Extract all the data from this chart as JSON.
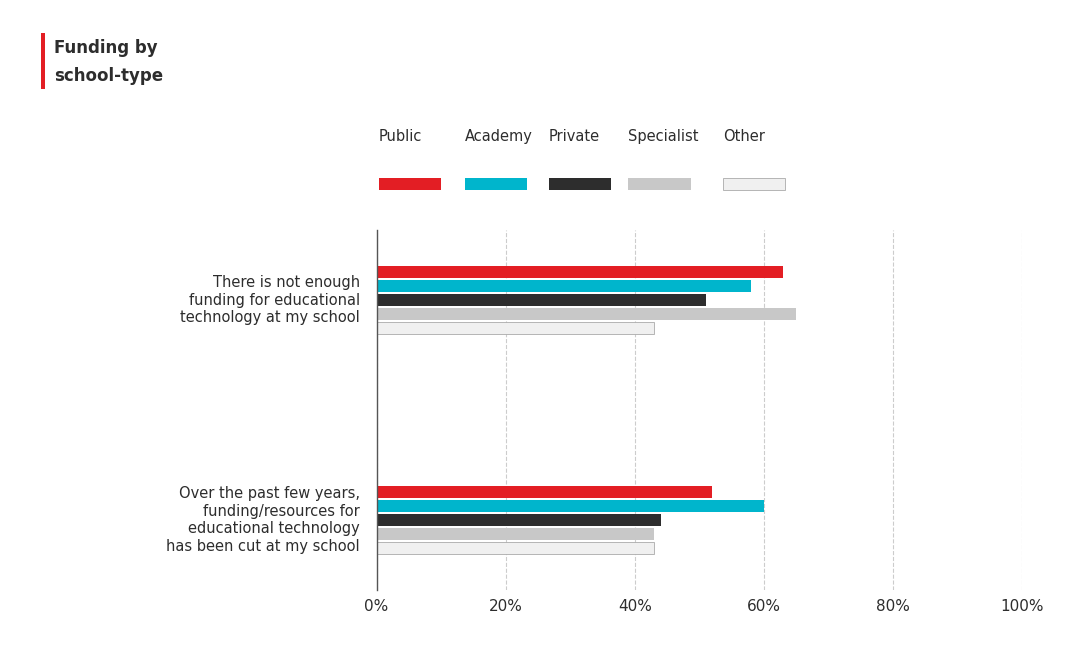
{
  "title_line1": "Funding by",
  "title_line2": "school-type",
  "title_color": "#2d2d2d",
  "accent_color": "#e31e24",
  "categories": [
    "There is not enough\nfunding for educational\ntechnology at my school",
    "Over the past few years,\nfunding/resources for\neducational technology\nhas been cut at my school"
  ],
  "school_types": [
    "Public",
    "Academy",
    "Private",
    "Specialist",
    "Other"
  ],
  "colors": [
    "#e31e24",
    "#00b5cc",
    "#2d2d2d",
    "#c8c8c8",
    "#f0f0f0"
  ],
  "bar_edge_colors": [
    "none",
    "none",
    "none",
    "none",
    "#aaaaaa"
  ],
  "values": [
    [
      63,
      58,
      51,
      65,
      43
    ],
    [
      52,
      60,
      44,
      43,
      43
    ]
  ],
  "xlim": [
    0,
    100
  ],
  "xticks": [
    0,
    20,
    40,
    60,
    80,
    100
  ],
  "xticklabels": [
    "0%",
    "20%",
    "40%",
    "60%",
    "80%",
    "100%"
  ],
  "background_color": "#ffffff",
  "grid_color": "#cccccc",
  "figsize": [
    10.76,
    6.56
  ],
  "dpi": 100
}
